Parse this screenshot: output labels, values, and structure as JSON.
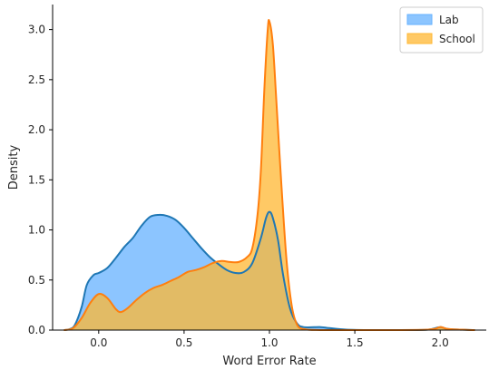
{
  "chart_data": {
    "type": "area",
    "title": "",
    "xlabel": "Word Error Rate",
    "ylabel": "Density",
    "xlim": [
      -0.27,
      2.27
    ],
    "ylim": [
      0,
      3.25
    ],
    "xticks": [
      {
        "value": 0.0,
        "label": "0.0"
      },
      {
        "value": 0.5,
        "label": "0.5"
      },
      {
        "value": 1.0,
        "label": "1.0"
      },
      {
        "value": 1.5,
        "label": "1.5"
      },
      {
        "value": 2.0,
        "label": "2.0"
      }
    ],
    "yticks": [
      {
        "value": 0.0,
        "label": "0.0"
      },
      {
        "value": 0.5,
        "label": "0.5"
      },
      {
        "value": 1.0,
        "label": "1.0"
      },
      {
        "value": 1.5,
        "label": "1.5"
      },
      {
        "value": 2.0,
        "label": "2.0"
      },
      {
        "value": 2.5,
        "label": "2.5"
      },
      {
        "value": 3.0,
        "label": "3.0"
      }
    ],
    "grid": false,
    "legend": "upper right",
    "series": [
      {
        "name": "Lab",
        "line_color": "#1f77b4",
        "fill_color": "#66b2ff",
        "points": [
          [
            -0.2,
            0.0
          ],
          [
            -0.17,
            0.01
          ],
          [
            -0.14,
            0.05
          ],
          [
            -0.1,
            0.23
          ],
          [
            -0.07,
            0.45
          ],
          [
            -0.03,
            0.55
          ],
          [
            0.0,
            0.57
          ],
          [
            0.05,
            0.62
          ],
          [
            0.1,
            0.72
          ],
          [
            0.15,
            0.83
          ],
          [
            0.2,
            0.92
          ],
          [
            0.25,
            1.04
          ],
          [
            0.3,
            1.13
          ],
          [
            0.35,
            1.15
          ],
          [
            0.4,
            1.14
          ],
          [
            0.45,
            1.1
          ],
          [
            0.5,
            1.02
          ],
          [
            0.55,
            0.92
          ],
          [
            0.6,
            0.82
          ],
          [
            0.65,
            0.73
          ],
          [
            0.7,
            0.66
          ],
          [
            0.75,
            0.6
          ],
          [
            0.8,
            0.57
          ],
          [
            0.85,
            0.58
          ],
          [
            0.9,
            0.67
          ],
          [
            0.95,
            0.92
          ],
          [
            0.98,
            1.12
          ],
          [
            1.0,
            1.18
          ],
          [
            1.02,
            1.12
          ],
          [
            1.05,
            0.9
          ],
          [
            1.08,
            0.55
          ],
          [
            1.12,
            0.22
          ],
          [
            1.16,
            0.07
          ],
          [
            1.2,
            0.03
          ],
          [
            1.3,
            0.03
          ],
          [
            1.35,
            0.02
          ],
          [
            1.45,
            0.005
          ],
          [
            1.6,
            0.0
          ],
          [
            1.8,
            0.0
          ],
          [
            1.93,
            0.005
          ],
          [
            2.0,
            0.03
          ],
          [
            2.05,
            0.01
          ],
          [
            2.2,
            0.0
          ]
        ]
      },
      {
        "name": "School",
        "line_color": "#ff7f0e",
        "fill_color": "#ffb732",
        "points": [
          [
            -0.2,
            0.0
          ],
          [
            -0.15,
            0.02
          ],
          [
            -0.1,
            0.12
          ],
          [
            -0.05,
            0.27
          ],
          [
            0.0,
            0.36
          ],
          [
            0.05,
            0.32
          ],
          [
            0.1,
            0.21
          ],
          [
            0.13,
            0.18
          ],
          [
            0.17,
            0.22
          ],
          [
            0.22,
            0.3
          ],
          [
            0.27,
            0.37
          ],
          [
            0.32,
            0.42
          ],
          [
            0.37,
            0.45
          ],
          [
            0.42,
            0.49
          ],
          [
            0.47,
            0.53
          ],
          [
            0.52,
            0.58
          ],
          [
            0.57,
            0.6
          ],
          [
            0.62,
            0.63
          ],
          [
            0.67,
            0.67
          ],
          [
            0.72,
            0.69
          ],
          [
            0.77,
            0.68
          ],
          [
            0.82,
            0.68
          ],
          [
            0.87,
            0.73
          ],
          [
            0.9,
            0.82
          ],
          [
            0.93,
            1.15
          ],
          [
            0.95,
            1.6
          ],
          [
            0.97,
            2.4
          ],
          [
            0.99,
            3.0
          ],
          [
            1.0,
            3.08
          ],
          [
            1.02,
            2.85
          ],
          [
            1.04,
            2.3
          ],
          [
            1.07,
            1.45
          ],
          [
            1.1,
            0.7
          ],
          [
            1.13,
            0.25
          ],
          [
            1.16,
            0.06
          ],
          [
            1.2,
            0.01
          ],
          [
            1.3,
            0.0
          ],
          [
            1.6,
            0.0
          ],
          [
            1.93,
            0.005
          ],
          [
            2.0,
            0.03
          ],
          [
            2.05,
            0.01
          ],
          [
            2.2,
            0.0
          ]
        ]
      }
    ]
  }
}
